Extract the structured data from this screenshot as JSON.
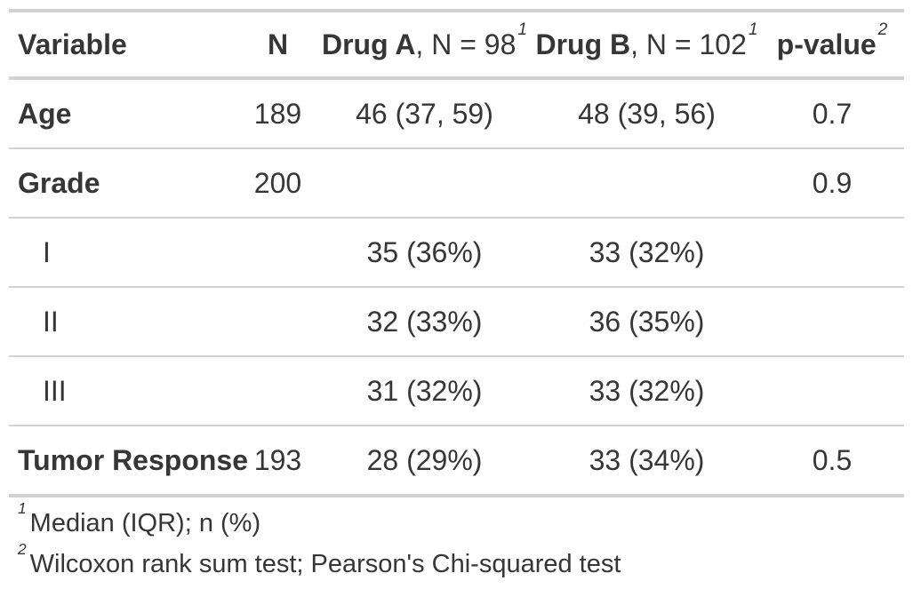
{
  "colors": {
    "text": "#363636",
    "border_light": "#d2d2d2",
    "border_dark": "#a6a6a6",
    "background": "#ffffff"
  },
  "table": {
    "columns": {
      "variable": "Variable",
      "n": "N",
      "drug_a_name": "Drug A",
      "drug_a_rest": ", N = 98",
      "drug_a_footnote_mark": "1",
      "drug_b_name": "Drug B",
      "drug_b_rest": ", N = 102",
      "drug_b_footnote_mark": "1",
      "p_value": "p-value",
      "p_value_footnote_mark": "2"
    },
    "rows": [
      {
        "label": "Age",
        "n": "189",
        "drug_a": "46 (37, 59)",
        "drug_b": "48 (39, 56)",
        "p_value": "0.7"
      },
      {
        "label": "Grade",
        "n": "200",
        "drug_a": "",
        "drug_b": "",
        "p_value": "0.9"
      },
      {
        "label": "I",
        "n": "",
        "drug_a": "35 (36%)",
        "drug_b": "33 (32%)",
        "p_value": ""
      },
      {
        "label": "II",
        "n": "",
        "drug_a": "32 (33%)",
        "drug_b": "36 (35%)",
        "p_value": ""
      },
      {
        "label": "III",
        "n": "",
        "drug_a": "31 (32%)",
        "drug_b": "33 (32%)",
        "p_value": ""
      },
      {
        "label": "Tumor Response",
        "n": "193",
        "drug_a": "28 (29%)",
        "drug_b": "33 (34%)",
        "p_value": "0.5"
      }
    ],
    "footnotes": [
      {
        "mark": "1",
        "text": "Median (IQR); n (%)"
      },
      {
        "mark": "2",
        "text": "Wilcoxon rank sum test; Pearson's Chi-squared test"
      }
    ]
  }
}
